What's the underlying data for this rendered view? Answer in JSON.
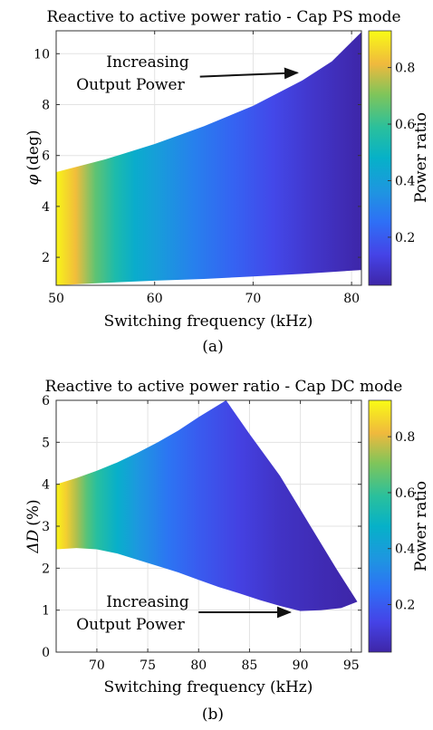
{
  "chart_data": [
    {
      "type": "heatmap",
      "title": "Reactive to active power ratio - Cap PS mode",
      "xlabel": "Switching frequency (kHz)",
      "ylabel_symbol": "φ",
      "ylabel_unit": "(deg)",
      "xlim": [
        50,
        81
      ],
      "ylim": [
        0.9,
        10.9
      ],
      "xticks": [
        "50",
        "60",
        "70",
        "80"
      ],
      "yticks": [
        "2",
        "4",
        "6",
        "8",
        "10"
      ],
      "grid": true,
      "region_upper": [
        [
          50,
          5.35
        ],
        [
          55,
          5.85
        ],
        [
          60,
          6.45
        ],
        [
          65,
          7.15
        ],
        [
          70,
          7.95
        ],
        [
          75,
          8.95
        ],
        [
          78,
          9.7
        ],
        [
          81,
          10.85
        ]
      ],
      "region_lower": [
        [
          50,
          0.9
        ],
        [
          55,
          1.0
        ],
        [
          60,
          1.08
        ],
        [
          65,
          1.15
        ],
        [
          70,
          1.25
        ],
        [
          75,
          1.35
        ],
        [
          81,
          1.5
        ]
      ],
      "power_ratio_vs_frequency": [
        [
          50,
          0.92
        ],
        [
          52,
          0.82
        ],
        [
          54,
          0.66
        ],
        [
          56,
          0.55
        ],
        [
          58,
          0.46
        ],
        [
          60,
          0.4
        ],
        [
          64,
          0.3
        ],
        [
          68,
          0.22
        ],
        [
          72,
          0.15
        ],
        [
          76,
          0.09
        ],
        [
          81,
          0.03
        ]
      ],
      "annotation": {
        "line1": "Increasing",
        "line2": "Output Power",
        "arrow_from": [
          64.6,
          9.1
        ],
        "arrow_to": [
          74.5,
          9.25
        ]
      },
      "colorbar": {
        "label": "Power ratio",
        "range": [
          0.03,
          0.93
        ],
        "ticks": [
          "0.2",
          "0.4",
          "0.6",
          "0.8"
        ]
      },
      "caption": "(a)"
    },
    {
      "type": "heatmap",
      "title": "Reactive to active power ratio - Cap DC mode",
      "xlabel": "Switching frequency (kHz)",
      "ylabel_symbol": "ΔD",
      "ylabel_unit": "(%)",
      "xlim": [
        66,
        96
      ],
      "ylim": [
        0,
        6
      ],
      "xticks": [
        "70",
        "75",
        "80",
        "85",
        "90",
        "95"
      ],
      "yticks": [
        "0",
        "1",
        "2",
        "3",
        "4",
        "5",
        "6"
      ],
      "grid": true,
      "region_upper": [
        [
          66,
          4.0
        ],
        [
          68,
          4.15
        ],
        [
          70,
          4.32
        ],
        [
          72,
          4.52
        ],
        [
          74,
          4.75
        ],
        [
          76,
          5.0
        ],
        [
          78,
          5.28
        ],
        [
          80,
          5.6
        ],
        [
          82.7,
          6.0
        ],
        [
          85,
          5.2
        ],
        [
          88,
          4.2
        ],
        [
          91,
          3.0
        ],
        [
          93.5,
          2.0
        ],
        [
          95.6,
          1.2
        ]
      ],
      "region_lower": [
        [
          66,
          2.45
        ],
        [
          68,
          2.48
        ],
        [
          70,
          2.45
        ],
        [
          72,
          2.35
        ],
        [
          74,
          2.2
        ],
        [
          76,
          2.05
        ],
        [
          78,
          1.9
        ],
        [
          80,
          1.72
        ],
        [
          82,
          1.55
        ],
        [
          84,
          1.4
        ],
        [
          86,
          1.24
        ],
        [
          88,
          1.1
        ],
        [
          90,
          0.98
        ],
        [
          92,
          1.0
        ],
        [
          94,
          1.05
        ],
        [
          95.6,
          1.2
        ]
      ],
      "power_ratio_vs_frequency": [
        [
          66,
          0.92
        ],
        [
          67,
          0.85
        ],
        [
          68,
          0.75
        ],
        [
          69,
          0.65
        ],
        [
          70,
          0.58
        ],
        [
          72,
          0.47
        ],
        [
          74,
          0.37
        ],
        [
          77,
          0.27
        ],
        [
          80,
          0.2
        ],
        [
          84,
          0.13
        ],
        [
          88,
          0.08
        ],
        [
          92,
          0.05
        ],
        [
          95.6,
          0.03
        ]
      ],
      "annotation": {
        "line1": "Increasing",
        "line2": "Output Power",
        "arrow_from": [
          80,
          0.95
        ],
        "arrow_to": [
          89,
          0.95
        ]
      },
      "colorbar": {
        "label": "Power ratio",
        "range": [
          0.03,
          0.93
        ],
        "ticks": [
          "0.2",
          "0.4",
          "0.6",
          "0.8"
        ]
      },
      "caption": "(b)"
    }
  ]
}
